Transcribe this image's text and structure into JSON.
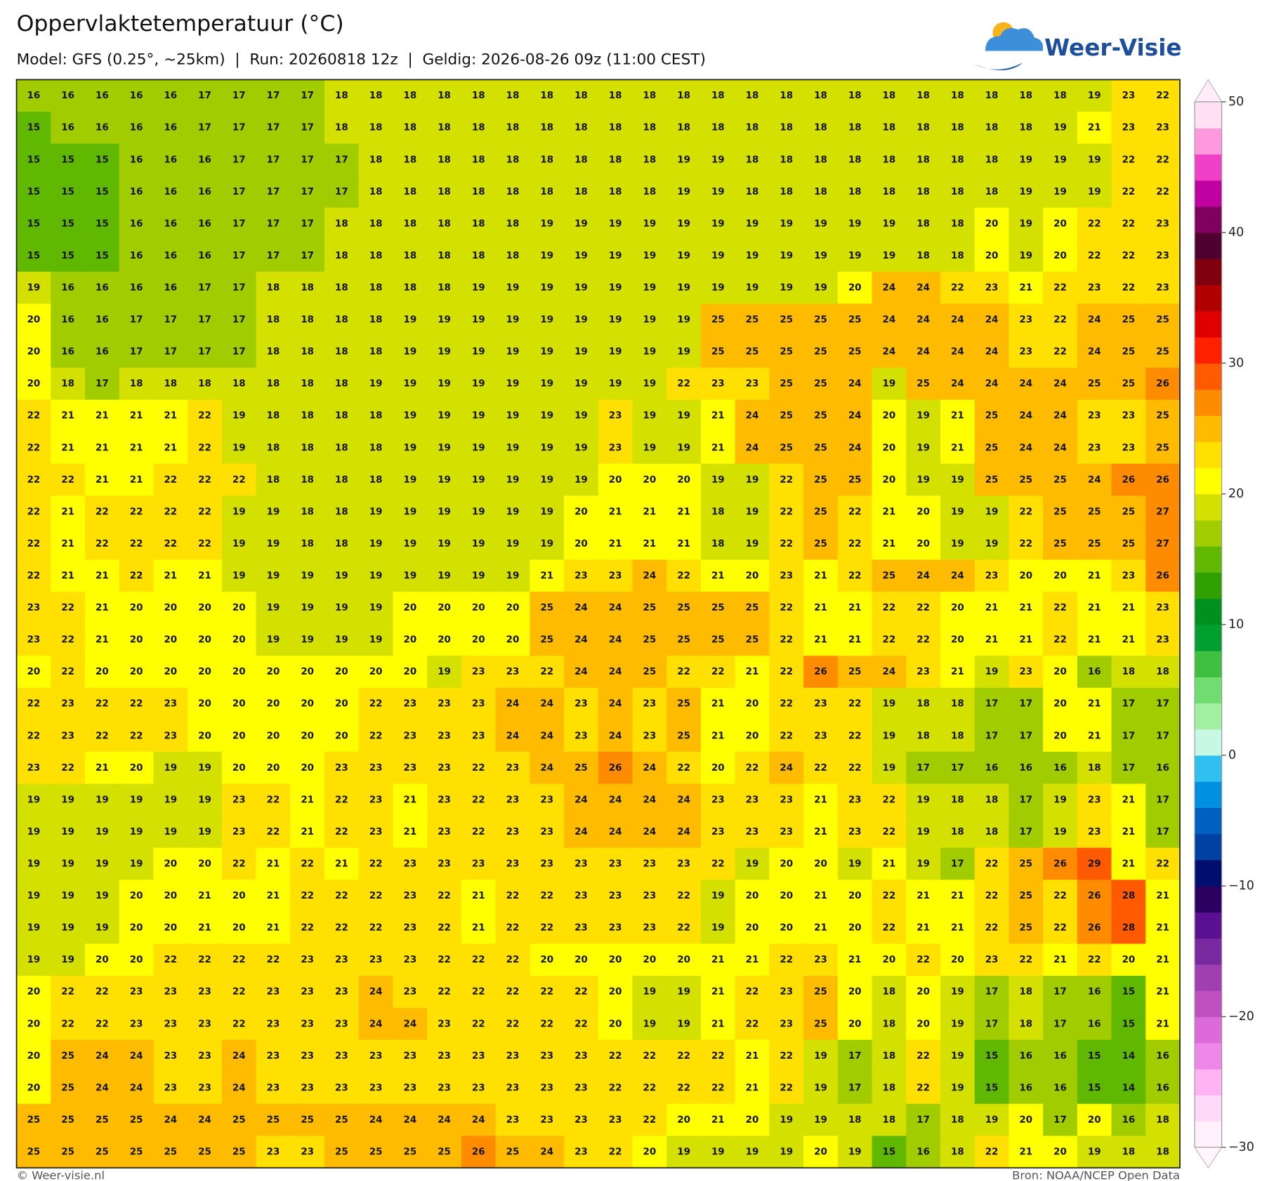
{
  "header": {
    "title": "Oppervlaktetemperatuur (°C)",
    "subtitle": "Model: GFS (0.25°, ~25km)  |  Run: 20260818 12z  |  Geldig: 2026-08-26 09z (11:00 CEST)",
    "logo": "Weer-Visie"
  },
  "map": {
    "rows": [
      [
        16,
        16,
        16,
        16,
        16,
        17,
        17,
        17,
        17,
        18,
        18,
        18,
        18,
        18,
        18,
        18,
        18,
        18,
        18,
        18,
        18,
        18,
        18,
        18,
        18,
        18,
        18,
        18,
        18,
        18,
        18,
        19,
        23,
        22
      ],
      [
        15,
        16,
        16,
        16,
        16,
        17,
        17,
        17,
        17,
        18,
        18,
        18,
        18,
        18,
        18,
        18,
        18,
        18,
        18,
        18,
        18,
        18,
        18,
        18,
        18,
        18,
        18,
        18,
        18,
        18,
        19,
        21,
        23,
        23
      ],
      [
        15,
        15,
        15,
        16,
        16,
        16,
        17,
        17,
        17,
        17,
        18,
        18,
        18,
        18,
        18,
        18,
        18,
        18,
        18,
        19,
        19,
        18,
        18,
        18,
        18,
        18,
        18,
        18,
        18,
        19,
        19,
        19,
        22,
        22
      ],
      [
        15,
        15,
        15,
        16,
        16,
        16,
        17,
        17,
        17,
        17,
        18,
        18,
        18,
        18,
        18,
        18,
        18,
        18,
        18,
        19,
        19,
        18,
        18,
        18,
        18,
        18,
        18,
        18,
        18,
        19,
        19,
        19,
        22,
        22
      ],
      [
        15,
        15,
        15,
        16,
        16,
        16,
        17,
        17,
        17,
        18,
        18,
        18,
        18,
        18,
        18,
        19,
        19,
        19,
        19,
        19,
        19,
        19,
        19,
        19,
        19,
        19,
        18,
        18,
        20,
        19,
        20,
        22,
        22,
        23
      ],
      [
        15,
        15,
        15,
        16,
        16,
        16,
        17,
        17,
        17,
        18,
        18,
        18,
        18,
        18,
        18,
        19,
        19,
        19,
        19,
        19,
        19,
        19,
        19,
        19,
        19,
        19,
        18,
        18,
        20,
        19,
        20,
        22,
        22,
        23
      ],
      [
        19,
        16,
        16,
        16,
        16,
        17,
        17,
        18,
        18,
        18,
        18,
        18,
        18,
        19,
        19,
        19,
        19,
        19,
        19,
        19,
        19,
        19,
        19,
        19,
        20,
        24,
        24,
        22,
        23,
        21,
        22,
        23,
        22,
        23
      ],
      [
        20,
        16,
        16,
        17,
        17,
        17,
        17,
        18,
        18,
        18,
        18,
        19,
        19,
        19,
        19,
        19,
        19,
        19,
        19,
        19,
        25,
        25,
        25,
        25,
        25,
        24,
        24,
        24,
        24,
        23,
        22,
        24,
        25,
        25
      ],
      [
        20,
        16,
        16,
        17,
        17,
        17,
        17,
        18,
        18,
        18,
        18,
        19,
        19,
        19,
        19,
        19,
        19,
        19,
        19,
        19,
        25,
        25,
        25,
        25,
        25,
        24,
        24,
        24,
        24,
        23,
        22,
        24,
        25,
        25
      ],
      [
        20,
        18,
        17,
        18,
        18,
        18,
        18,
        18,
        18,
        18,
        19,
        19,
        19,
        19,
        19,
        19,
        19,
        19,
        19,
        22,
        23,
        23,
        25,
        25,
        24,
        19,
        25,
        24,
        24,
        24,
        24,
        25,
        25,
        26
      ],
      [
        22,
        21,
        21,
        21,
        21,
        22,
        19,
        18,
        18,
        18,
        18,
        19,
        19,
        19,
        19,
        19,
        19,
        23,
        19,
        19,
        21,
        24,
        25,
        25,
        24,
        20,
        19,
        21,
        25,
        24,
        24,
        23,
        23,
        25
      ],
      [
        22,
        21,
        21,
        21,
        21,
        22,
        19,
        18,
        18,
        18,
        18,
        19,
        19,
        19,
        19,
        19,
        19,
        23,
        19,
        19,
        21,
        24,
        25,
        25,
        24,
        20,
        19,
        21,
        25,
        24,
        24,
        23,
        23,
        25
      ],
      [
        22,
        22,
        21,
        21,
        22,
        22,
        22,
        18,
        18,
        18,
        18,
        19,
        19,
        19,
        19,
        19,
        19,
        20,
        20,
        20,
        19,
        19,
        22,
        25,
        25,
        20,
        19,
        19,
        25,
        25,
        25,
        24,
        26,
        26
      ],
      [
        22,
        21,
        22,
        22,
        22,
        22,
        19,
        19,
        18,
        18,
        19,
        19,
        19,
        19,
        19,
        19,
        20,
        21,
        21,
        21,
        18,
        19,
        22,
        25,
        22,
        21,
        20,
        19,
        19,
        22,
        25,
        25,
        25,
        27
      ],
      [
        22,
        21,
        22,
        22,
        22,
        22,
        19,
        19,
        18,
        18,
        19,
        19,
        19,
        19,
        19,
        19,
        20,
        21,
        21,
        21,
        18,
        19,
        22,
        25,
        22,
        21,
        20,
        19,
        19,
        22,
        25,
        25,
        25,
        27
      ],
      [
        22,
        21,
        21,
        22,
        21,
        21,
        19,
        19,
        19,
        19,
        19,
        19,
        19,
        19,
        19,
        21,
        23,
        23,
        24,
        22,
        21,
        20,
        23,
        21,
        22,
        25,
        24,
        24,
        23,
        20,
        20,
        21,
        23,
        26
      ],
      [
        23,
        22,
        21,
        20,
        20,
        20,
        20,
        19,
        19,
        19,
        19,
        20,
        20,
        20,
        20,
        25,
        24,
        24,
        25,
        25,
        25,
        25,
        22,
        21,
        21,
        22,
        22,
        20,
        21,
        21,
        22,
        21,
        21,
        23
      ],
      [
        23,
        22,
        21,
        20,
        20,
        20,
        20,
        19,
        19,
        19,
        19,
        20,
        20,
        20,
        20,
        25,
        24,
        24,
        25,
        25,
        25,
        25,
        22,
        21,
        21,
        22,
        22,
        20,
        21,
        21,
        22,
        21,
        21,
        23
      ],
      [
        20,
        22,
        20,
        20,
        20,
        20,
        20,
        20,
        20,
        20,
        20,
        20,
        19,
        23,
        23,
        22,
        24,
        24,
        25,
        22,
        22,
        21,
        22,
        26,
        25,
        24,
        23,
        21,
        19,
        23,
        20,
        16,
        18,
        18
      ],
      [
        22,
        23,
        22,
        22,
        23,
        20,
        20,
        20,
        20,
        20,
        22,
        23,
        23,
        23,
        24,
        24,
        23,
        24,
        23,
        25,
        21,
        20,
        22,
        23,
        22,
        19,
        18,
        18,
        17,
        17,
        20,
        21,
        17,
        17
      ],
      [
        22,
        23,
        22,
        22,
        23,
        20,
        20,
        20,
        20,
        20,
        22,
        23,
        23,
        23,
        24,
        24,
        23,
        24,
        23,
        25,
        21,
        20,
        22,
        23,
        22,
        19,
        18,
        18,
        17,
        17,
        20,
        21,
        17,
        17
      ],
      [
        23,
        22,
        21,
        20,
        19,
        19,
        20,
        20,
        20,
        23,
        23,
        23,
        23,
        22,
        23,
        24,
        25,
        26,
        24,
        22,
        20,
        22,
        24,
        22,
        22,
        19,
        17,
        17,
        16,
        16,
        16,
        18,
        17,
        16
      ],
      [
        19,
        19,
        19,
        19,
        19,
        19,
        23,
        22,
        21,
        22,
        23,
        21,
        23,
        22,
        23,
        23,
        24,
        24,
        24,
        24,
        23,
        23,
        23,
        21,
        23,
        22,
        19,
        18,
        18,
        17,
        19,
        23,
        21,
        17
      ],
      [
        19,
        19,
        19,
        19,
        19,
        19,
        23,
        22,
        21,
        22,
        23,
        21,
        23,
        22,
        23,
        23,
        24,
        24,
        24,
        24,
        23,
        23,
        23,
        21,
        23,
        22,
        19,
        18,
        18,
        17,
        19,
        23,
        21,
        17
      ],
      [
        19,
        19,
        19,
        19,
        20,
        20,
        22,
        21,
        22,
        21,
        22,
        23,
        23,
        23,
        23,
        23,
        23,
        23,
        23,
        23,
        22,
        19,
        20,
        20,
        19,
        21,
        19,
        17,
        22,
        25,
        26,
        29,
        21,
        22
      ],
      [
        19,
        19,
        19,
        20,
        20,
        21,
        20,
        21,
        22,
        22,
        22,
        23,
        22,
        21,
        22,
        22,
        23,
        23,
        23,
        22,
        19,
        20,
        20,
        21,
        20,
        22,
        21,
        21,
        22,
        25,
        22,
        26,
        28,
        21
      ],
      [
        19,
        19,
        19,
        20,
        20,
        21,
        20,
        21,
        22,
        22,
        22,
        23,
        22,
        21,
        22,
        22,
        23,
        23,
        23,
        22,
        19,
        20,
        20,
        21,
        20,
        22,
        21,
        21,
        22,
        25,
        22,
        26,
        28,
        21
      ],
      [
        19,
        19,
        20,
        20,
        22,
        22,
        22,
        22,
        23,
        23,
        23,
        23,
        22,
        22,
        22,
        20,
        20,
        20,
        20,
        20,
        21,
        21,
        22,
        23,
        21,
        20,
        22,
        20,
        23,
        22,
        21,
        22,
        20,
        21
      ],
      [
        20,
        22,
        22,
        23,
        23,
        23,
        22,
        23,
        23,
        23,
        24,
        23,
        22,
        22,
        22,
        22,
        22,
        20,
        19,
        19,
        21,
        22,
        23,
        25,
        20,
        18,
        20,
        19,
        17,
        18,
        17,
        16,
        15,
        21
      ],
      [
        20,
        22,
        22,
        23,
        23,
        23,
        22,
        23,
        23,
        23,
        24,
        24,
        23,
        22,
        22,
        22,
        22,
        20,
        19,
        19,
        21,
        22,
        23,
        25,
        20,
        18,
        20,
        19,
        17,
        18,
        17,
        16,
        15,
        21
      ],
      [
        20,
        25,
        24,
        24,
        23,
        23,
        24,
        23,
        23,
        23,
        23,
        23,
        23,
        23,
        23,
        23,
        23,
        22,
        22,
        22,
        22,
        21,
        22,
        19,
        17,
        18,
        22,
        19,
        15,
        16,
        16,
        15,
        14,
        16
      ],
      [
        20,
        25,
        24,
        24,
        23,
        23,
        24,
        23,
        23,
        23,
        23,
        23,
        23,
        23,
        23,
        23,
        23,
        22,
        22,
        22,
        22,
        21,
        22,
        19,
        17,
        18,
        22,
        19,
        15,
        16,
        16,
        15,
        14,
        16
      ],
      [
        25,
        25,
        25,
        25,
        24,
        24,
        25,
        25,
        25,
        25,
        24,
        24,
        24,
        24,
        23,
        23,
        23,
        23,
        22,
        20,
        21,
        20,
        19,
        19,
        18,
        18,
        17,
        18,
        19,
        20,
        17,
        20,
        16,
        18
      ],
      [
        25,
        25,
        25,
        25,
        25,
        25,
        25,
        23,
        23,
        25,
        25,
        25,
        25,
        26,
        25,
        24,
        23,
        22,
        20,
        19,
        19,
        19,
        19,
        20,
        19,
        15,
        16,
        18,
        22,
        21,
        20,
        19,
        18,
        18
      ]
    ]
  },
  "colorbar": {
    "range": [
      -30,
      50
    ],
    "colors": [
      "#fff0fb",
      "#ffd9f7",
      "#ffb3f2",
      "#ee88e8",
      "#dd6ad9",
      "#c050c0",
      "#a040b0",
      "#7a2aa0",
      "#5a1090",
      "#2a0060",
      "#000e70",
      "#0040a0",
      "#0060c0",
      "#0090e0",
      "#30c0f0",
      "#c8f8e4",
      "#a0f0a0",
      "#70dd70",
      "#40c040",
      "#00a030",
      "#00901e",
      "#30a000",
      "#60b800",
      "#a0cc00",
      "#d4e000",
      "#ffff00",
      "#ffe000",
      "#ffbb00",
      "#ff8c00",
      "#ff5a00",
      "#ff2000",
      "#e00000",
      "#b00000",
      "#800010",
      "#500030",
      "#800060",
      "#c000a0",
      "#f040c8",
      "#ff99dd",
      "#ffe0f4"
    ],
    "ticks": [
      50,
      40,
      30,
      20,
      10,
      0,
      {
        "value": -10,
        "label": "−10"
      },
      {
        "value": -20,
        "label": "−20"
      },
      {
        "value": -30,
        "label": "−30"
      }
    ]
  },
  "footer": {
    "left": "© Weer-visie.nl",
    "right": "Bron: NOAA/NCEP Open Data"
  }
}
